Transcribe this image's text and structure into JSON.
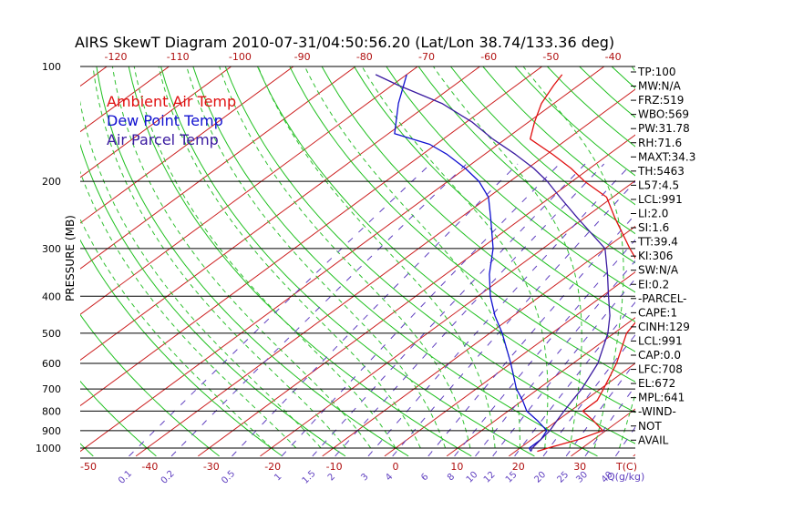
{
  "chart_data": {
    "type": "skewt",
    "title": "AIRS SkewT Diagram 2010-07-31/04:50:56.20 (Lat/Lon 38.74/133.36 deg)",
    "ylabel": "PRESSURE (MB)",
    "top_temp_axis": {
      "labels": [
        "-120",
        "-110",
        "-100",
        "-90",
        "-80",
        "-70",
        "-60",
        "-50",
        "-40"
      ],
      "values": [
        -120,
        -110,
        -100,
        -90,
        -80,
        -70,
        -60,
        -50,
        -40
      ]
    },
    "bottom_temp_axis": {
      "labels": [
        "-50",
        "-40",
        "-30",
        "-20",
        "-10",
        "0",
        "10",
        "20",
        "30"
      ],
      "values": [
        -50,
        -40,
        -30,
        -20,
        -10,
        0,
        10,
        20,
        30
      ],
      "unit_label": "T(C)"
    },
    "mixing_ratio_axis": {
      "labels": [
        "0.1",
        "0.2",
        "0.5",
        "1",
        "1.5",
        "2",
        "3",
        "4",
        "6",
        "8",
        "10",
        "12",
        "15",
        "20",
        "25",
        "30",
        "40"
      ],
      "values": [
        0.1,
        0.2,
        0.5,
        1,
        1.5,
        2,
        3,
        4,
        6,
        8,
        10,
        12,
        15,
        20,
        25,
        30,
        40
      ],
      "unit_label": "Q(g/kg)"
    },
    "pressure_levels": {
      "labels": [
        "100",
        "200",
        "300",
        "400",
        "500",
        "600",
        "700",
        "800",
        "900",
        "1000"
      ],
      "values": [
        100,
        200,
        300,
        400,
        500,
        600,
        700,
        800,
        900,
        1000
      ]
    },
    "legend": {
      "placement": "top-left",
      "entries": [
        {
          "label": "Ambient Air Temp",
          "color": "#e01010"
        },
        {
          "label": "Dew Point Temp",
          "color": "#1010d0"
        },
        {
          "label": "Air Parcel Temp",
          "color": "#3a1aa0"
        }
      ]
    },
    "series": [
      {
        "name": "Ambient Air Temp",
        "color": "#e01010",
        "points": [
          [
            1020,
            23.5
          ],
          [
            1000,
            24.5
          ],
          [
            950,
            27.5
          ],
          [
            900,
            29.5
          ],
          [
            850,
            26.0
          ],
          [
            800,
            22.0
          ],
          [
            750,
            22.0
          ],
          [
            700,
            20.5
          ],
          [
            600,
            17.0
          ],
          [
            500,
            12.0
          ],
          [
            450,
            10.5
          ],
          [
            400,
            6.0
          ],
          [
            350,
            2.0
          ],
          [
            300,
            -6.0
          ],
          [
            250,
            -15.0
          ],
          [
            220,
            -21.0
          ],
          [
            200,
            -28.0
          ],
          [
            185,
            -33.0
          ],
          [
            170,
            -39.0
          ],
          [
            155,
            -46.0
          ],
          [
            140,
            -49.0
          ],
          [
            125,
            -52.0
          ],
          [
            112,
            -54.0
          ],
          [
            105,
            -55.0
          ]
        ]
      },
      {
        "name": "Dew Point Temp",
        "color": "#1010d0",
        "points": [
          [
            1020,
            22.5
          ],
          [
            1000,
            21.5
          ],
          [
            950,
            21.5
          ],
          [
            900,
            20.5
          ],
          [
            850,
            17.0
          ],
          [
            800,
            13.0
          ],
          [
            750,
            10.0
          ],
          [
            700,
            6.5
          ],
          [
            600,
            0.0
          ],
          [
            500,
            -8.0
          ],
          [
            450,
            -13.0
          ],
          [
            400,
            -18.0
          ],
          [
            350,
            -23.0
          ],
          [
            300,
            -28.0
          ],
          [
            250,
            -35.0
          ],
          [
            220,
            -40.0
          ],
          [
            200,
            -45.0
          ],
          [
            185,
            -50.0
          ],
          [
            170,
            -56.0
          ],
          [
            160,
            -61.0
          ],
          [
            150,
            -69.0
          ],
          [
            125,
            -75.0
          ],
          [
            105,
            -80.0
          ]
        ]
      },
      {
        "name": "Air Parcel Temp",
        "color": "#3a1aa0",
        "points": [
          [
            1020,
            22.5
          ],
          [
            1000,
            22.0
          ],
          [
            950,
            21.5
          ],
          [
            900,
            21.0
          ],
          [
            850,
            20.0
          ],
          [
            800,
            19.0
          ],
          [
            750,
            18.0
          ],
          [
            700,
            17.0
          ],
          [
            600,
            14.0
          ],
          [
            500,
            9.0
          ],
          [
            450,
            5.5
          ],
          [
            400,
            1.0
          ],
          [
            350,
            -4.0
          ],
          [
            300,
            -10.0
          ],
          [
            250,
            -21.0
          ],
          [
            220,
            -28.5
          ],
          [
            200,
            -34.0
          ],
          [
            185,
            -39.0
          ],
          [
            170,
            -45.0
          ],
          [
            155,
            -52.0
          ],
          [
            140,
            -59.0
          ],
          [
            125,
            -68.0
          ],
          [
            112,
            -79.0
          ],
          [
            105,
            -85.0
          ]
        ]
      }
    ],
    "stats": [
      "TP:100",
      "MW:N/A",
      "FRZ:519",
      "WBO:569",
      "PW:31.78",
      "RH:71.6",
      "MAXT:34.3",
      "TH:5463",
      "L57:4.5",
      "LCL:991",
      "LI:2.0",
      "SI:1.6",
      "TT:39.4",
      "KI:306",
      "SW:N/A",
      "EI:0.2",
      "-PARCEL-",
      "CAPE:1",
      "CINH:129",
      "LCL:991",
      "CAP:0.0",
      "LFC:708",
      "EL:672",
      "MPL:641",
      "-WIND-",
      "NOT",
      "AVAIL"
    ],
    "background_lines": {
      "isotherm_color": "#cc2020",
      "dry_adiabat_color": "#20c020",
      "moist_adiabat_color": "#30c030",
      "mixing_ratio_color": "#6040c0",
      "isobar_color": "#000000",
      "text_color": "#000000",
      "axis_label_color": "#b01010",
      "mixing_label_color": "#6040c0"
    }
  }
}
